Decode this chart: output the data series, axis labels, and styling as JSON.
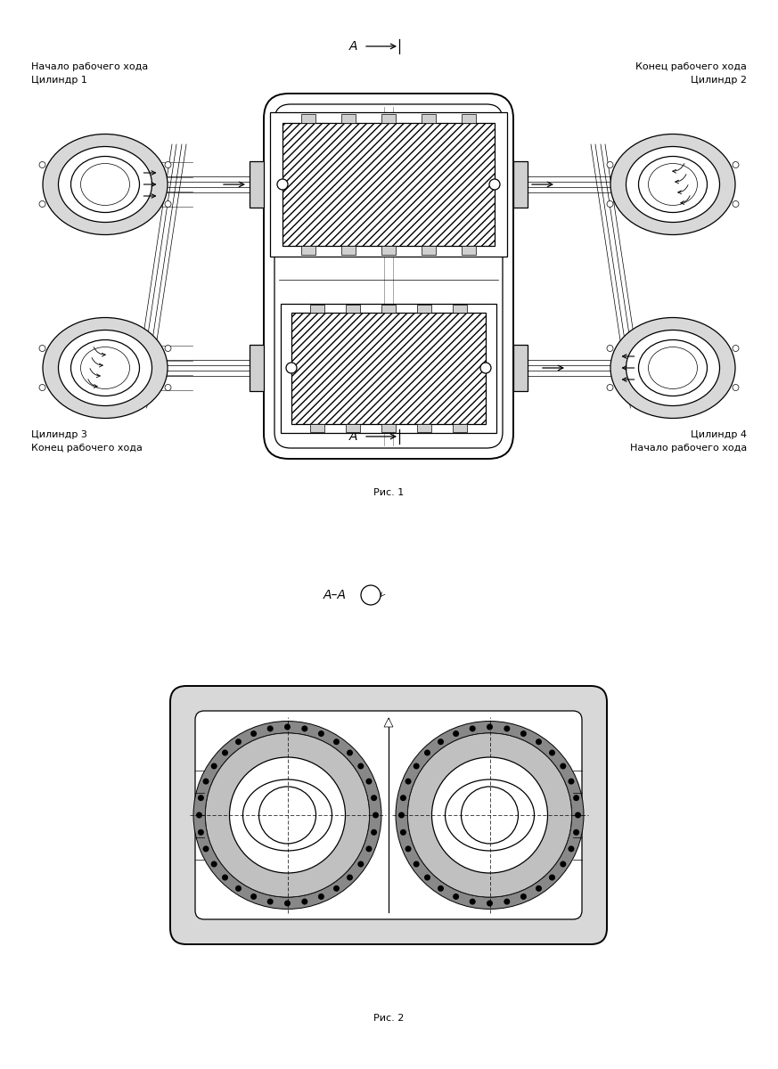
{
  "bg_color": "#ffffff",
  "line_color": "#000000",
  "fig1_caption": "Рис. 1",
  "fig2_caption": "Рис. 2",
  "label_top_left_1": "Начало рабочего хода",
  "label_top_left_2": "Цилиндр 1",
  "label_top_right_1": "Конец рабочего хода",
  "label_top_right_2": "Цилиндр 2",
  "label_bot_left_1": "Цилиндр 3",
  "label_bot_left_2": "Конец рабочего хода",
  "label_bot_right_1": "Цилиндр 4",
  "label_bot_right_2": "Начало рабочего хода",
  "section_label_top": "А",
  "section_label_bot": "А",
  "section_label2": "А–А",
  "font_size": 8
}
